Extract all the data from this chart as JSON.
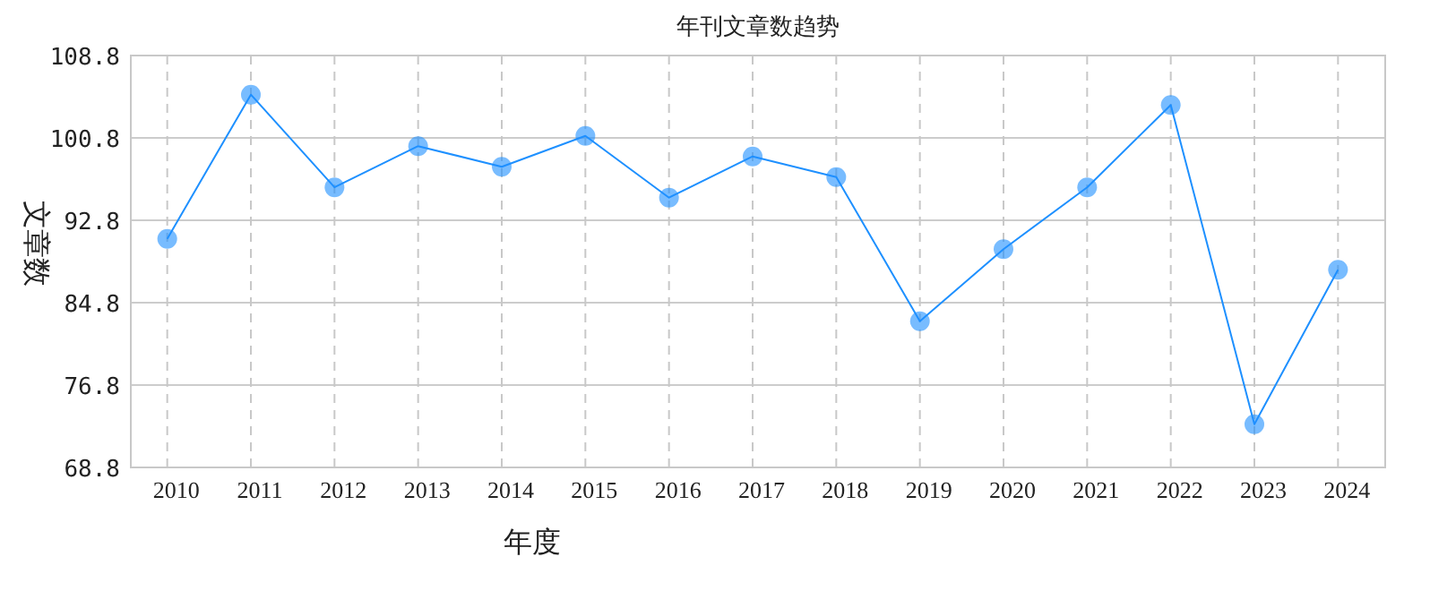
{
  "chart_data": {
    "type": "line",
    "title": "年刊文章数趋势",
    "xlabel": "年度",
    "ylabel": "文章数",
    "categories": [
      "2010",
      "2011",
      "2012",
      "2013",
      "2014",
      "2015",
      "2016",
      "2017",
      "2018",
      "2019",
      "2020",
      "2021",
      "2022",
      "2023",
      "2024"
    ],
    "series": [
      {
        "color": "#1e90ff",
        "values": [
          91,
          105,
          96,
          100,
          98,
          101,
          95,
          99,
          97,
          83,
          90,
          96,
          104,
          73,
          88
        ]
      }
    ],
    "ylim": [
      68.8,
      108.8
    ],
    "yticks": [
      68.8,
      76.8,
      84.8,
      92.8,
      100.8,
      108.8
    ],
    "grid": true,
    "marker": "circle",
    "line_style": "solid"
  }
}
